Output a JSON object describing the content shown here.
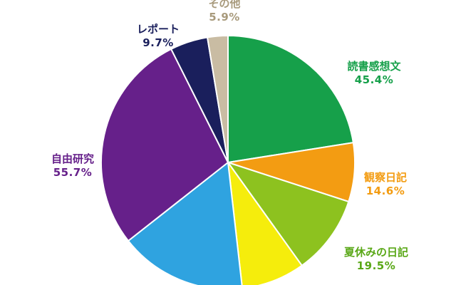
{
  "chart_data": {
    "type": "pie",
    "title": "",
    "start_angle_deg": 0,
    "direction": "clockwise",
    "slices": [
      {
        "label": "読書感想文",
        "value_label": "45.4%",
        "share": 22.5,
        "color": "#16a04a",
        "label_color": "#16a04a"
      },
      {
        "label": "観察日記",
        "value_label": "14.6%",
        "share": 7.5,
        "color": "#f39c12",
        "label_color": "#f39c12"
      },
      {
        "label": "夏休みの日記",
        "value_label": "19.5%",
        "share": 10.1,
        "color": "#8dc21f",
        "label_color": "#5aa818"
      },
      {
        "label": "",
        "value_label": "",
        "share": 8.1,
        "color": "#f5ed0c",
        "label_color": "#000000"
      },
      {
        "label": "",
        "value_label": "",
        "share": 16.2,
        "color": "#2fa3e0",
        "label_color": "#000000"
      },
      {
        "label": "自由研究",
        "value_label": "55.7%",
        "share": 28.2,
        "color": "#66208a",
        "label_color": "#66208a"
      },
      {
        "label": "レポート",
        "value_label": "9.7%",
        "share": 4.8,
        "color": "#1a1f5c",
        "label_color": "#1a1f5c"
      },
      {
        "label": "その他",
        "value_label": "5.9%",
        "share": 2.6,
        "color": "#c9bca3",
        "label_color": "#a89a7c"
      }
    ]
  }
}
